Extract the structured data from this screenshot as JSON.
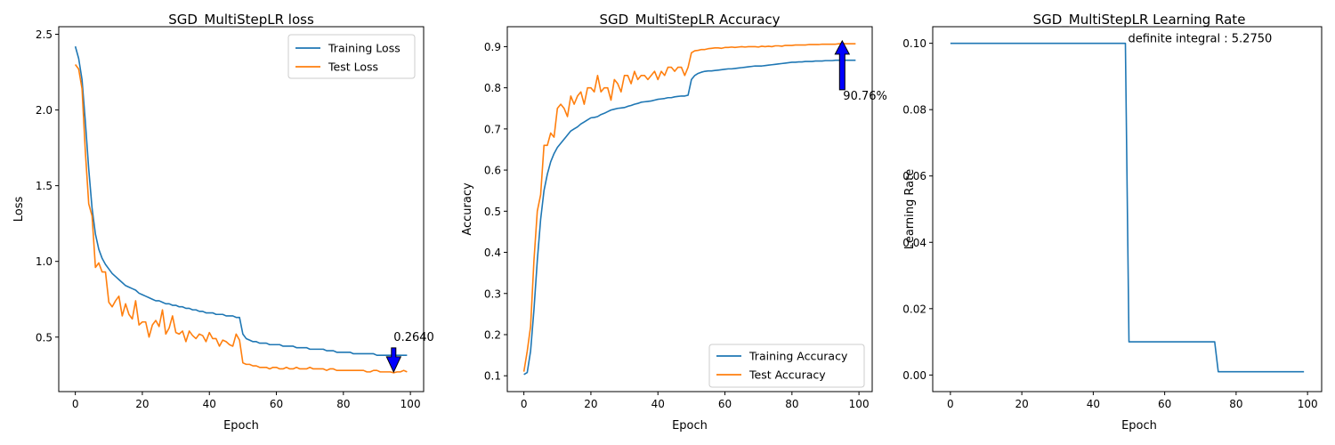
{
  "chart_data": [
    {
      "type": "line",
      "title": "SGD_MultiStepLR loss",
      "xlabel": "Epoch",
      "ylabel": "Loss",
      "xlim": [
        -4.95,
        103.95
      ],
      "ylim": [
        0.14,
        2.55
      ],
      "xticks": [
        0,
        20,
        40,
        60,
        80,
        100
      ],
      "yticks": [
        0.5,
        1.0,
        1.5,
        2.0,
        2.5
      ],
      "ytick_labels": [
        "0.5",
        "1.0",
        "1.5",
        "2.0",
        "2.5"
      ],
      "grid": false,
      "legend": "top-right",
      "x": [
        0,
        1,
        2,
        3,
        4,
        5,
        6,
        7,
        8,
        9,
        10,
        11,
        12,
        13,
        14,
        15,
        16,
        17,
        18,
        19,
        20,
        21,
        22,
        23,
        24,
        25,
        26,
        27,
        28,
        29,
        30,
        31,
        32,
        33,
        34,
        35,
        36,
        37,
        38,
        39,
        40,
        41,
        42,
        43,
        44,
        45,
        46,
        47,
        48,
        49,
        50,
        51,
        52,
        53,
        54,
        55,
        56,
        57,
        58,
        59,
        60,
        61,
        62,
        63,
        64,
        65,
        66,
        67,
        68,
        69,
        70,
        71,
        72,
        73,
        74,
        75,
        76,
        77,
        78,
        79,
        80,
        81,
        82,
        83,
        84,
        85,
        86,
        87,
        88,
        89,
        90,
        91,
        92,
        93,
        94,
        95,
        96,
        97,
        98,
        99
      ],
      "series": [
        {
          "name": "Training Loss",
          "color": "#1f77b4",
          "values": [
            2.42,
            2.34,
            2.2,
            1.92,
            1.61,
            1.35,
            1.18,
            1.08,
            1.02,
            0.98,
            0.95,
            0.92,
            0.9,
            0.88,
            0.86,
            0.84,
            0.83,
            0.82,
            0.81,
            0.79,
            0.78,
            0.77,
            0.76,
            0.75,
            0.74,
            0.74,
            0.73,
            0.72,
            0.72,
            0.71,
            0.71,
            0.7,
            0.7,
            0.69,
            0.69,
            0.68,
            0.68,
            0.67,
            0.67,
            0.66,
            0.66,
            0.66,
            0.65,
            0.65,
            0.65,
            0.64,
            0.64,
            0.64,
            0.63,
            0.63,
            0.52,
            0.49,
            0.48,
            0.47,
            0.47,
            0.46,
            0.46,
            0.46,
            0.45,
            0.45,
            0.45,
            0.45,
            0.44,
            0.44,
            0.44,
            0.44,
            0.43,
            0.43,
            0.43,
            0.43,
            0.42,
            0.42,
            0.42,
            0.42,
            0.42,
            0.41,
            0.41,
            0.41,
            0.4,
            0.4,
            0.4,
            0.4,
            0.4,
            0.39,
            0.39,
            0.39,
            0.39,
            0.39,
            0.39,
            0.39,
            0.38,
            0.38,
            0.38,
            0.38,
            0.38,
            0.38,
            0.38,
            0.38,
            0.38,
            0.38
          ]
        },
        {
          "name": "Test Loss",
          "color": "#ff7f0e",
          "values": [
            2.3,
            2.27,
            2.14,
            1.72,
            1.38,
            1.3,
            0.96,
            0.99,
            0.93,
            0.93,
            0.73,
            0.7,
            0.74,
            0.77,
            0.64,
            0.72,
            0.65,
            0.62,
            0.74,
            0.58,
            0.6,
            0.6,
            0.5,
            0.58,
            0.61,
            0.57,
            0.68,
            0.52,
            0.56,
            0.64,
            0.53,
            0.52,
            0.54,
            0.47,
            0.54,
            0.51,
            0.49,
            0.52,
            0.51,
            0.47,
            0.53,
            0.49,
            0.49,
            0.44,
            0.48,
            0.47,
            0.45,
            0.44,
            0.52,
            0.48,
            0.33,
            0.32,
            0.32,
            0.31,
            0.31,
            0.3,
            0.3,
            0.3,
            0.29,
            0.3,
            0.3,
            0.29,
            0.29,
            0.3,
            0.29,
            0.29,
            0.3,
            0.29,
            0.29,
            0.29,
            0.3,
            0.29,
            0.29,
            0.29,
            0.29,
            0.28,
            0.29,
            0.29,
            0.28,
            0.28,
            0.28,
            0.28,
            0.28,
            0.28,
            0.28,
            0.28,
            0.28,
            0.27,
            0.27,
            0.28,
            0.28,
            0.27,
            0.27,
            0.27,
            0.27,
            0.264,
            0.27,
            0.27,
            0.28,
            0.27
          ]
        }
      ],
      "annotation": {
        "text": "0.2640",
        "x": 95,
        "y": 0.264,
        "arrow": "down",
        "arrow_color": "#0000ff"
      }
    },
    {
      "type": "line",
      "title": "SGD_MultiStepLR Accuracy",
      "xlabel": "Epoch",
      "ylabel": "Accuracy",
      "xlim": [
        -4.95,
        103.95
      ],
      "ylim": [
        0.0615,
        0.9485
      ],
      "xticks": [
        0,
        20,
        40,
        60,
        80,
        100
      ],
      "yticks": [
        0.1,
        0.2,
        0.3,
        0.4,
        0.5,
        0.6,
        0.7,
        0.8,
        0.9
      ],
      "ytick_labels": [
        "0.1",
        "0.2",
        "0.3",
        "0.4",
        "0.5",
        "0.6",
        "0.7",
        "0.8",
        "0.9"
      ],
      "grid": false,
      "legend": "bottom-right",
      "x": [
        0,
        1,
        2,
        3,
        4,
        5,
        6,
        7,
        8,
        9,
        10,
        11,
        12,
        13,
        14,
        15,
        16,
        17,
        18,
        19,
        20,
        21,
        22,
        23,
        24,
        25,
        26,
        27,
        28,
        29,
        30,
        31,
        32,
        33,
        34,
        35,
        36,
        37,
        38,
        39,
        40,
        41,
        42,
        43,
        44,
        45,
        46,
        47,
        48,
        49,
        50,
        51,
        52,
        53,
        54,
        55,
        56,
        57,
        58,
        59,
        60,
        61,
        62,
        63,
        64,
        65,
        66,
        67,
        68,
        69,
        70,
        71,
        72,
        73,
        74,
        75,
        76,
        77,
        78,
        79,
        80,
        81,
        82,
        83,
        84,
        85,
        86,
        87,
        88,
        89,
        90,
        91,
        92,
        93,
        94,
        95,
        96,
        97,
        98,
        99
      ],
      "series": [
        {
          "name": "Training Accuracy",
          "color": "#1f77b4",
          "values": [
            0.103,
            0.108,
            0.16,
            0.26,
            0.38,
            0.48,
            0.55,
            0.59,
            0.62,
            0.64,
            0.655,
            0.665,
            0.675,
            0.685,
            0.695,
            0.7,
            0.705,
            0.712,
            0.717,
            0.722,
            0.727,
            0.728,
            0.73,
            0.735,
            0.738,
            0.742,
            0.746,
            0.748,
            0.75,
            0.751,
            0.752,
            0.755,
            0.757,
            0.76,
            0.762,
            0.765,
            0.766,
            0.767,
            0.768,
            0.77,
            0.772,
            0.773,
            0.774,
            0.776,
            0.776,
            0.778,
            0.779,
            0.78,
            0.78,
            0.782,
            0.82,
            0.83,
            0.835,
            0.838,
            0.84,
            0.841,
            0.841,
            0.842,
            0.843,
            0.844,
            0.845,
            0.846,
            0.846,
            0.847,
            0.848,
            0.849,
            0.85,
            0.851,
            0.852,
            0.853,
            0.853,
            0.853,
            0.854,
            0.855,
            0.856,
            0.857,
            0.858,
            0.859,
            0.86,
            0.861,
            0.862,
            0.862,
            0.863,
            0.863,
            0.864,
            0.864,
            0.864,
            0.865,
            0.865,
            0.865,
            0.866,
            0.866,
            0.866,
            0.867,
            0.867,
            0.867,
            0.867,
            0.867,
            0.867,
            0.867
          ]
        },
        {
          "name": "Test Accuracy",
          "color": "#ff7f0e",
          "values": [
            0.11,
            0.16,
            0.22,
            0.38,
            0.5,
            0.54,
            0.66,
            0.66,
            0.69,
            0.68,
            0.75,
            0.76,
            0.75,
            0.73,
            0.78,
            0.76,
            0.78,
            0.79,
            0.76,
            0.8,
            0.8,
            0.79,
            0.83,
            0.79,
            0.8,
            0.8,
            0.77,
            0.82,
            0.81,
            0.79,
            0.83,
            0.83,
            0.81,
            0.84,
            0.82,
            0.83,
            0.83,
            0.82,
            0.83,
            0.84,
            0.82,
            0.84,
            0.83,
            0.85,
            0.85,
            0.84,
            0.85,
            0.85,
            0.83,
            0.85,
            0.885,
            0.89,
            0.891,
            0.893,
            0.893,
            0.895,
            0.896,
            0.897,
            0.897,
            0.896,
            0.898,
            0.898,
            0.899,
            0.898,
            0.899,
            0.9,
            0.899,
            0.9,
            0.9,
            0.9,
            0.899,
            0.901,
            0.9,
            0.901,
            0.9,
            0.902,
            0.902,
            0.901,
            0.903,
            0.903,
            0.903,
            0.904,
            0.904,
            0.904,
            0.904,
            0.905,
            0.905,
            0.905,
            0.905,
            0.906,
            0.906,
            0.906,
            0.906,
            0.906,
            0.907,
            0.9076,
            0.907,
            0.907,
            0.907,
            0.907
          ]
        }
      ],
      "annotation": {
        "text": "90.76%",
        "x": 95,
        "y": 0.9076,
        "arrow": "up",
        "arrow_color": "#0000ff"
      }
    },
    {
      "type": "line",
      "title": "SGD_MultiStepLR Learning Rate",
      "xlabel": "Epoch",
      "ylabel": "Learning Rate",
      "xlim": [
        -4.95,
        103.95
      ],
      "ylim": [
        -0.005,
        0.105
      ],
      "xticks": [
        0,
        20,
        40,
        60,
        80,
        100
      ],
      "yticks": [
        0.0,
        0.02,
        0.04,
        0.06,
        0.08,
        0.1
      ],
      "ytick_labels": [
        "0.00",
        "0.02",
        "0.04",
        "0.06",
        "0.08",
        "0.10"
      ],
      "grid": false,
      "x": [
        0,
        49,
        50,
        74,
        75,
        99
      ],
      "series": [
        {
          "color": "#1f77b4",
          "values": [
            0.1,
            0.1,
            0.01,
            0.01,
            0.001,
            0.001
          ]
        }
      ],
      "annotation": {
        "text": "definite integral : 5.2750",
        "x": 49,
        "y": 0.1
      }
    }
  ]
}
